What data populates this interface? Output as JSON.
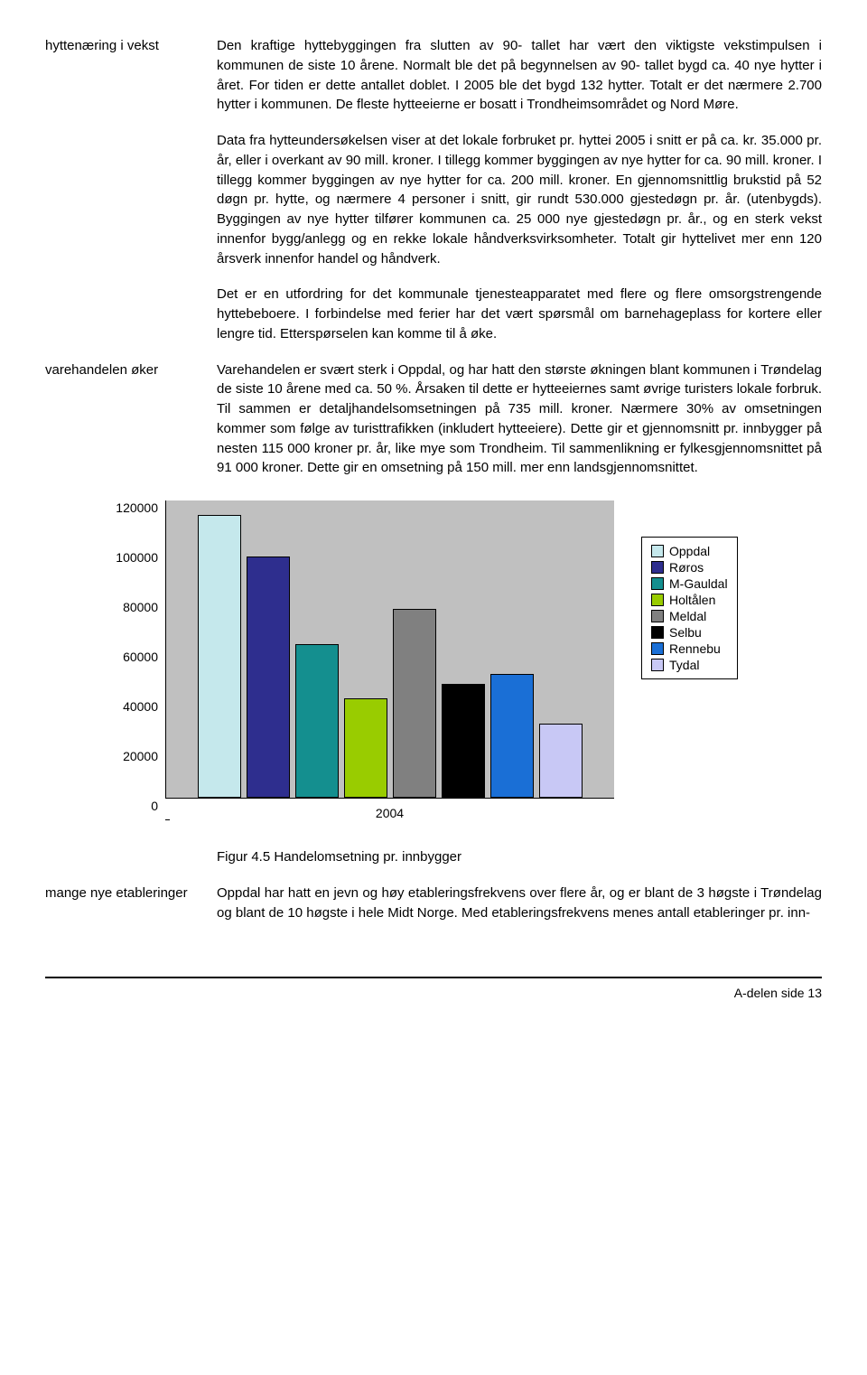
{
  "sections": {
    "s1": {
      "label": "hyttenæring i vekst",
      "p1": "Den kraftige hyttebyggingen fra slutten av 90- tallet har vært den viktigste vekstimpulsen i kommunen de siste 10 årene. Normalt ble det på begynnelsen av 90- tallet bygd ca. 40 nye hytter i året. For tiden er dette antallet doblet. I 2005 ble det bygd 132 hytter. Totalt er det nærmere 2.700 hytter i kommunen. De fleste hytteeierne er bosatt i Trondheimsområdet og Nord Møre.",
      "p2": "Data fra hytteundersøkelsen viser at det lokale forbruket pr. hyttei 2005 i snitt er på ca. kr. 35.000 pr. år, eller i overkant av 90 mill. kroner. I tillegg kommer byggingen av nye hytter for ca. 90 mill. kroner. I tillegg kommer byggingen av nye hytter for ca. 200 mill. kroner. En gjennomsnittlig brukstid på 52 døgn pr. hytte, og nærmere 4 personer i snitt, gir rundt 530.000 gjestedøgn pr. år. (utenbygds). Byggingen av nye hytter tilfører kommunen ca. 25 000 nye gjestedøgn pr. år., og en sterk vekst innenfor bygg/anlegg og en rekke lokale håndverksvirksomheter. Totalt gir hyttelivet mer enn 120 årsverk innenfor handel og håndverk.",
      "p3": "Det er en utfordring for det kommunale tjenesteapparatet med flere og flere omsorgstrengende hyttebeboere. I forbindelse med ferier har det vært spørsmål om barnehageplass for kortere eller lengre tid. Etterspørselen kan komme til å øke."
    },
    "s2": {
      "label": "varehandelen øker",
      "p1": "Varehandelen er svært sterk i Oppdal, og har hatt den største økningen blant kommunen i Trøndelag de siste 10 årene med ca. 50 %. Årsaken til dette er hytteeiernes samt øvrige turisters lokale forbruk. Til sammen er detaljhandelsomsetningen på 735 mill. kroner. Nærmere 30% av omsetningen kommer som følge av turisttrafikken (inkludert hytteeiere). Dette gir et gjennomsnitt pr. innbygger på nesten 115 000 kroner pr. år, like mye som Trondheim. Til sammenlikning er fylkesgjennomsnittet på 91 000 kroner. Dette gir en omsetning på 150 mill. mer enn landsgjennomsnittet."
    },
    "s3": {
      "label": "mange nye etableringer",
      "figcaption": "Figur 4.5 Handelomsetning pr. innbygger",
      "p1": "Oppdal har hatt en jevn og høy etableringsfrekvens over flere år, og er blant de 3 høgste i Trøndelag og blant de 10 høgste i hele Midt Norge. Med etableringsfrekvens menes antall etableringer pr. inn-"
    }
  },
  "chart": {
    "type": "bar",
    "x_label": "2004",
    "ymax": 120000,
    "ytick_step": 20000,
    "yticks": [
      "0",
      "20000",
      "40000",
      "60000",
      "80000",
      "100000",
      "120000"
    ],
    "plot_bg": "#c0c0c0",
    "series": [
      {
        "name": "Oppdal",
        "value": 114000,
        "color": "#c5e8ec"
      },
      {
        "name": "Røros",
        "value": 97000,
        "color": "#2e2e8e"
      },
      {
        "name": "M-Gauldal",
        "value": 62000,
        "color": "#148f8f"
      },
      {
        "name": "Holtålen",
        "value": 40000,
        "color": "#99cc00"
      },
      {
        "name": "Meldal",
        "value": 76000,
        "color": "#808080"
      },
      {
        "name": "Selbu",
        "value": 46000,
        "color": "#000000"
      },
      {
        "name": "Rennebu",
        "value": 50000,
        "color": "#1a6fd6"
      },
      {
        "name": "Tydal",
        "value": 30000,
        "color": "#c8c8f5"
      }
    ]
  },
  "footer": "A-delen side 13"
}
